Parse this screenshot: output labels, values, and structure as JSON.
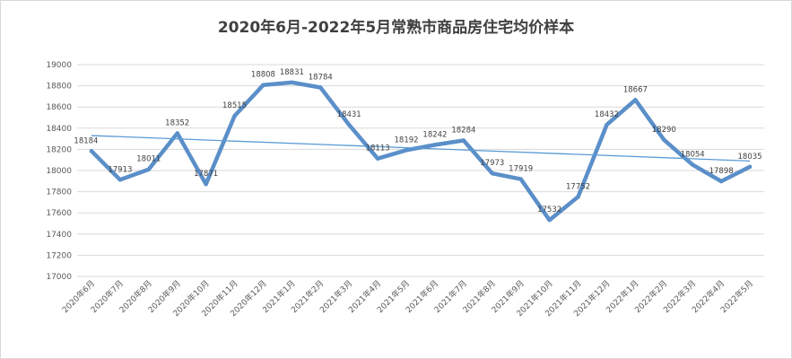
{
  "chart_data": {
    "type": "line",
    "title": "2020年6月-2022年5月常熟市商品房住宅均价样本",
    "categories": [
      "2020年6月",
      "2020年7月",
      "2020年8月",
      "2020年9月",
      "2020年10月",
      "2020年11月",
      "2020年12月",
      "2021年1月",
      "2021年2月",
      "2021年3月",
      "2021年4月",
      "2021年5月",
      "2021年6月",
      "2021年7月",
      "2021年8月",
      "2021年9月",
      "2021年10月",
      "2021年11月",
      "2021年12月",
      "2022年1月",
      "2022年2月",
      "2022年3月",
      "2022年4月",
      "2022年5月"
    ],
    "series": [
      {
        "values": [
          18184,
          17913,
          18011,
          18352,
          17871,
          18515,
          18808,
          18831,
          18784,
          18431,
          18113,
          18192,
          18242,
          18284,
          17973,
          17919,
          17532,
          17752,
          18432,
          18667,
          18290,
          18054,
          17898,
          18035
        ]
      }
    ],
    "trendline": {
      "type": "linear",
      "start": 18330,
      "end": 18090
    },
    "ylim": [
      17000,
      19000
    ],
    "yticks": [
      17000,
      17200,
      17400,
      17600,
      17800,
      18000,
      18200,
      18400,
      18600,
      18800,
      19000
    ],
    "grid": true,
    "colors": {
      "series": "#5b8fc9",
      "trendline": "#5b9bd5",
      "grid": "#d9d9d9"
    }
  }
}
